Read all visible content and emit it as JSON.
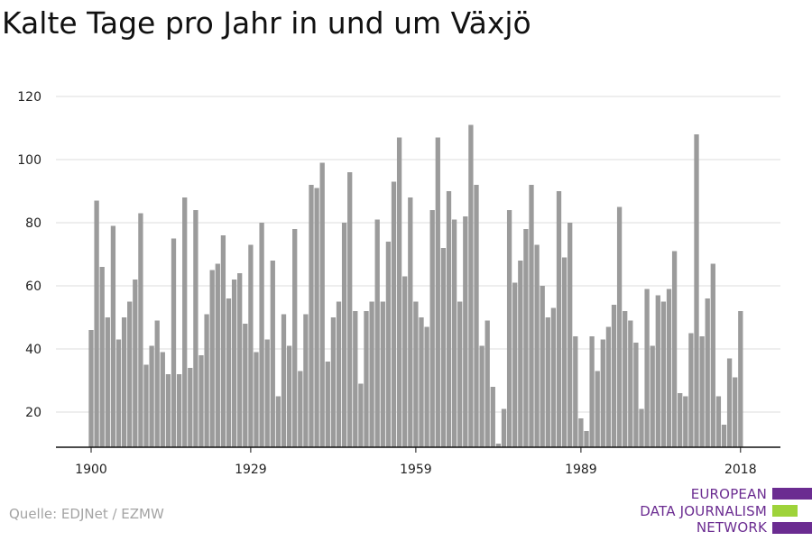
{
  "chart_data": {
    "type": "bar",
    "title": "Kalte Tage pro Jahr in und um Växjö",
    "x": [
      1900,
      1901,
      1902,
      1903,
      1904,
      1905,
      1906,
      1907,
      1908,
      1909,
      1910,
      1911,
      1912,
      1913,
      1914,
      1915,
      1916,
      1917,
      1918,
      1919,
      1920,
      1921,
      1922,
      1923,
      1924,
      1925,
      1926,
      1927,
      1928,
      1929,
      1930,
      1931,
      1932,
      1933,
      1934,
      1935,
      1936,
      1937,
      1938,
      1939,
      1940,
      1941,
      1942,
      1943,
      1944,
      1945,
      1946,
      1947,
      1948,
      1949,
      1950,
      1951,
      1952,
      1953,
      1954,
      1955,
      1956,
      1957,
      1958,
      1959,
      1960,
      1961,
      1962,
      1963,
      1964,
      1965,
      1966,
      1967,
      1968,
      1969,
      1970,
      1971,
      1972,
      1973,
      1974,
      1975,
      1976,
      1977,
      1978,
      1979,
      1980,
      1981,
      1982,
      1983,
      1984,
      1985,
      1986,
      1987,
      1988,
      1989,
      1990,
      1991,
      1992,
      1993,
      1994,
      1995,
      1996,
      1997,
      1998,
      1999,
      2000,
      2001,
      2002,
      2003,
      2004,
      2005,
      2006,
      2007,
      2008,
      2009,
      2010,
      2011,
      2012,
      2013,
      2014,
      2015,
      2016,
      2017,
      2018
    ],
    "values": [
      46,
      87,
      66,
      50,
      79,
      43,
      50,
      55,
      62,
      83,
      35,
      41,
      49,
      39,
      32,
      75,
      32,
      88,
      34,
      84,
      38,
      51,
      65,
      67,
      76,
      56,
      62,
      64,
      48,
      73,
      39,
      80,
      43,
      68,
      25,
      51,
      41,
      78,
      33,
      51,
      92,
      91,
      99,
      36,
      50,
      55,
      80,
      96,
      52,
      29,
      52,
      55,
      81,
      55,
      74,
      93,
      107,
      63,
      88,
      55,
      50,
      47,
      84,
      107,
      72,
      90,
      81,
      55,
      82,
      111,
      92,
      41,
      49,
      28,
      10,
      21,
      84,
      61,
      68,
      78,
      92,
      73,
      60,
      50,
      53,
      90,
      69,
      80,
      44,
      18,
      14,
      44,
      33,
      43,
      47,
      54,
      85,
      52,
      49,
      42,
      21,
      59,
      41,
      57,
      55,
      59,
      71,
      26,
      25,
      45,
      108,
      44,
      56,
      67,
      25,
      16,
      37,
      31,
      52
    ],
    "xticks": [
      1900,
      1929,
      1959,
      1989,
      2018
    ],
    "yticks": [
      20,
      40,
      60,
      80,
      100,
      120
    ],
    "ylim": [
      8,
      120
    ],
    "grid": true,
    "bar_color": "#9b9b9b"
  },
  "footer": {
    "source": "Quelle: EDJNet / EZMW",
    "logo_lines": [
      "EUROPEAN",
      "DATA JOURNALISM",
      "NETWORK"
    ],
    "logo_colors": {
      "purple": "#6b2c91",
      "green": "#9ed33a"
    }
  }
}
